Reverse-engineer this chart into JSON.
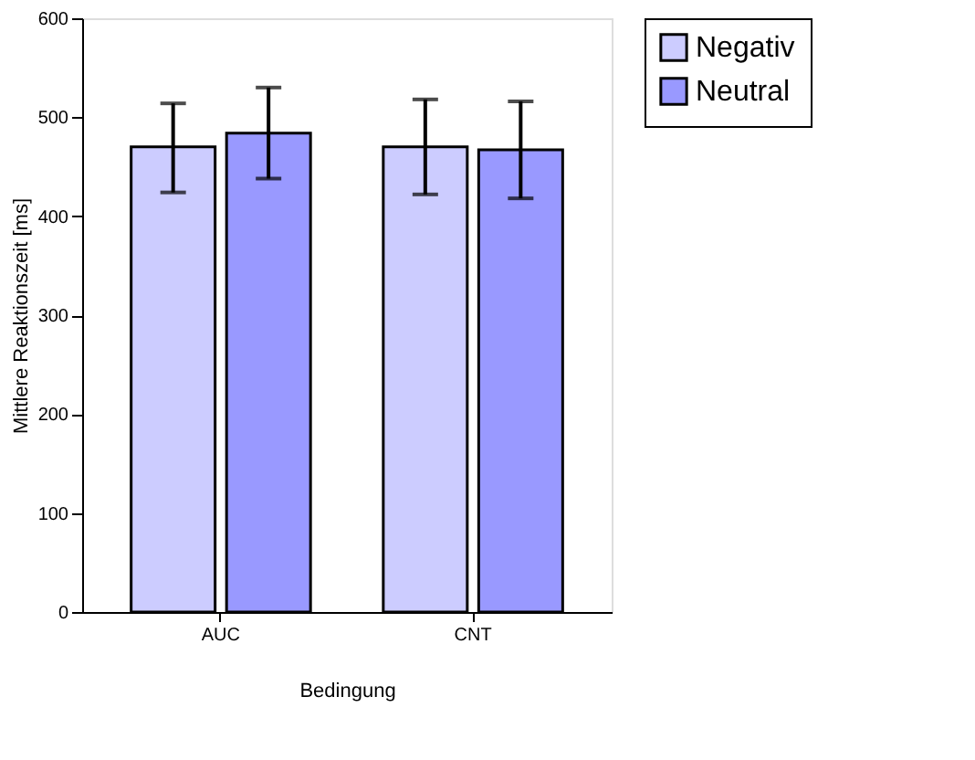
{
  "chart_data": {
    "type": "bar",
    "xlabel": "Bedingung",
    "ylabel": "Mittlere Reaktionszeit [ms]",
    "categories": [
      "AUC",
      "CNT"
    ],
    "series": [
      {
        "name": "Negativ",
        "color": "#ccccff",
        "values": [
          470,
          470
        ],
        "errors": [
          [
            424,
            514
          ],
          [
            422,
            518
          ]
        ]
      },
      {
        "name": "Neutral",
        "color": "#9999ff",
        "values": [
          484,
          467
        ],
        "errors": [
          [
            438,
            530
          ],
          [
            418,
            516
          ]
        ]
      }
    ],
    "ylim": [
      0,
      600
    ],
    "yticks": [
      0,
      100,
      200,
      300,
      400,
      500,
      600
    ],
    "grid": false,
    "legend": "right"
  }
}
